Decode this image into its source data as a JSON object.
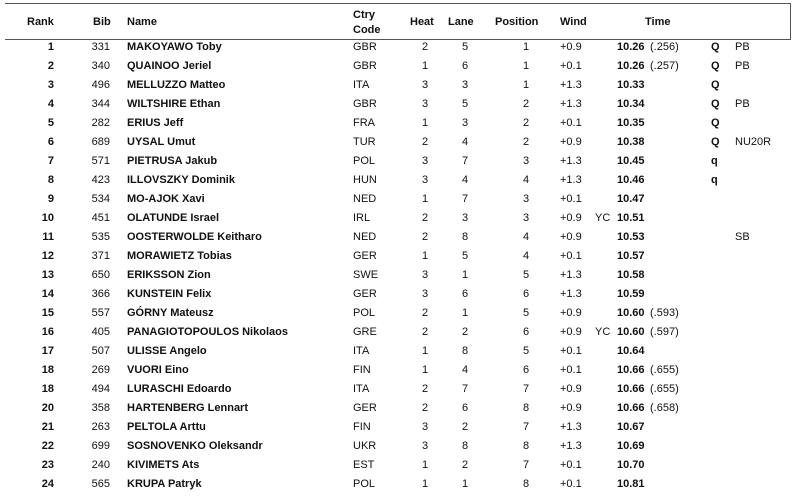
{
  "headers": {
    "rank": "Rank",
    "bib": "Bib",
    "name": "Name",
    "ctry_line1": "Ctry",
    "ctry_line2": "Code",
    "heat": "Heat",
    "lane": "Lane",
    "position": "Position",
    "wind": "Wind",
    "time": "Time"
  },
  "rows": [
    {
      "rank": "1",
      "bib": "331",
      "name": "MAKOYAWO Toby",
      "ctry": "GBR",
      "heat": "2",
      "lane": "5",
      "pos": "1",
      "wind": "+0.9",
      "yc": "",
      "time": "10.26",
      "tb": "(.256)",
      "q": "Q",
      "note": "PB"
    },
    {
      "rank": "2",
      "bib": "340",
      "name": "QUAINOO Jeriel",
      "ctry": "GBR",
      "heat": "1",
      "lane": "6",
      "pos": "1",
      "wind": "+0.1",
      "yc": "",
      "time": "10.26",
      "tb": "(.257)",
      "q": "Q",
      "note": "PB"
    },
    {
      "rank": "3",
      "bib": "496",
      "name": "MELLUZZO Matteo",
      "ctry": "ITA",
      "heat": "3",
      "lane": "3",
      "pos": "1",
      "wind": "+1.3",
      "yc": "",
      "time": "10.33",
      "tb": "",
      "q": "Q",
      "note": ""
    },
    {
      "rank": "4",
      "bib": "344",
      "name": "WILTSHIRE Ethan",
      "ctry": "GBR",
      "heat": "3",
      "lane": "5",
      "pos": "2",
      "wind": "+1.3",
      "yc": "",
      "time": "10.34",
      "tb": "",
      "q": "Q",
      "note": "PB"
    },
    {
      "rank": "5",
      "bib": "282",
      "name": "ERIUS Jeff",
      "ctry": "FRA",
      "heat": "1",
      "lane": "3",
      "pos": "2",
      "wind": "+0.1",
      "yc": "",
      "time": "10.35",
      "tb": "",
      "q": "Q",
      "note": ""
    },
    {
      "rank": "6",
      "bib": "689",
      "name": "UYSAL Umut",
      "ctry": "TUR",
      "heat": "2",
      "lane": "4",
      "pos": "2",
      "wind": "+0.9",
      "yc": "",
      "time": "10.38",
      "tb": "",
      "q": "Q",
      "note": "NU20R"
    },
    {
      "rank": "7",
      "bib": "571",
      "name": "PIETRUSA Jakub",
      "ctry": "POL",
      "heat": "3",
      "lane": "7",
      "pos": "3",
      "wind": "+1.3",
      "yc": "",
      "time": "10.45",
      "tb": "",
      "q": "q",
      "note": ""
    },
    {
      "rank": "8",
      "bib": "423",
      "name": "ILLOVSZKY Dominik",
      "ctry": "HUN",
      "heat": "3",
      "lane": "4",
      "pos": "4",
      "wind": "+1.3",
      "yc": "",
      "time": "10.46",
      "tb": "",
      "q": "q",
      "note": ""
    },
    {
      "rank": "9",
      "bib": "534",
      "name": "MO-AJOK Xavi",
      "ctry": "NED",
      "heat": "1",
      "lane": "7",
      "pos": "3",
      "wind": "+0.1",
      "yc": "",
      "time": "10.47",
      "tb": "",
      "q": "",
      "note": ""
    },
    {
      "rank": "10",
      "bib": "451",
      "name": "OLATUNDE Israel",
      "ctry": "IRL",
      "heat": "2",
      "lane": "3",
      "pos": "3",
      "wind": "+0.9",
      "yc": "YC",
      "time": "10.51",
      "tb": "",
      "q": "",
      "note": ""
    },
    {
      "rank": "11",
      "bib": "535",
      "name": "OOSTERWOLDE Keitharo",
      "ctry": "NED",
      "heat": "2",
      "lane": "8",
      "pos": "4",
      "wind": "+0.9",
      "yc": "",
      "time": "10.53",
      "tb": "",
      "q": "",
      "note": "SB"
    },
    {
      "rank": "12",
      "bib": "371",
      "name": "MORAWIETZ Tobias",
      "ctry": "GER",
      "heat": "1",
      "lane": "5",
      "pos": "4",
      "wind": "+0.1",
      "yc": "",
      "time": "10.57",
      "tb": "",
      "q": "",
      "note": ""
    },
    {
      "rank": "13",
      "bib": "650",
      "name": "ERIKSSON Zion",
      "ctry": "SWE",
      "heat": "3",
      "lane": "1",
      "pos": "5",
      "wind": "+1.3",
      "yc": "",
      "time": "10.58",
      "tb": "",
      "q": "",
      "note": ""
    },
    {
      "rank": "14",
      "bib": "366",
      "name": "KUNSTEIN Felix",
      "ctry": "GER",
      "heat": "3",
      "lane": "6",
      "pos": "6",
      "wind": "+1.3",
      "yc": "",
      "time": "10.59",
      "tb": "",
      "q": "",
      "note": ""
    },
    {
      "rank": "15",
      "bib": "557",
      "name": "GÓRNY Mateusz",
      "ctry": "POL",
      "heat": "2",
      "lane": "1",
      "pos": "5",
      "wind": "+0.9",
      "yc": "",
      "time": "10.60",
      "tb": "(.593)",
      "q": "",
      "note": ""
    },
    {
      "rank": "16",
      "bib": "405",
      "name": "PANAGIOTOPOULOS Nikolaos",
      "ctry": "GRE",
      "heat": "2",
      "lane": "2",
      "pos": "6",
      "wind": "+0.9",
      "yc": "YC",
      "time": "10.60",
      "tb": "(.597)",
      "q": "",
      "note": ""
    },
    {
      "rank": "17",
      "bib": "507",
      "name": "ULISSE Angelo",
      "ctry": "ITA",
      "heat": "1",
      "lane": "8",
      "pos": "5",
      "wind": "+0.1",
      "yc": "",
      "time": "10.64",
      "tb": "",
      "q": "",
      "note": ""
    },
    {
      "rank": "18",
      "bib": "269",
      "name": "VUORI Eino",
      "ctry": "FIN",
      "heat": "1",
      "lane": "4",
      "pos": "6",
      "wind": "+0.1",
      "yc": "",
      "time": "10.66",
      "tb": "(.655)",
      "q": "",
      "note": ""
    },
    {
      "rank": "18",
      "bib": "494",
      "name": "LURASCHI Edoardo",
      "ctry": "ITA",
      "heat": "2",
      "lane": "7",
      "pos": "7",
      "wind": "+0.9",
      "yc": "",
      "time": "10.66",
      "tb": "(.655)",
      "q": "",
      "note": ""
    },
    {
      "rank": "20",
      "bib": "358",
      "name": "HARTENBERG Lennart",
      "ctry": "GER",
      "heat": "2",
      "lane": "6",
      "pos": "8",
      "wind": "+0.9",
      "yc": "",
      "time": "10.66",
      "tb": "(.658)",
      "q": "",
      "note": ""
    },
    {
      "rank": "21",
      "bib": "263",
      "name": "PELTOLA Arttu",
      "ctry": "FIN",
      "heat": "3",
      "lane": "2",
      "pos": "7",
      "wind": "+1.3",
      "yc": "",
      "time": "10.67",
      "tb": "",
      "q": "",
      "note": ""
    },
    {
      "rank": "22",
      "bib": "699",
      "name": "SOSNOVENKO Oleksandr",
      "ctry": "UKR",
      "heat": "3",
      "lane": "8",
      "pos": "8",
      "wind": "+1.3",
      "yc": "",
      "time": "10.69",
      "tb": "",
      "q": "",
      "note": ""
    },
    {
      "rank": "23",
      "bib": "240",
      "name": "KIVIMETS Ats",
      "ctry": "EST",
      "heat": "1",
      "lane": "2",
      "pos": "7",
      "wind": "+0.1",
      "yc": "",
      "time": "10.70",
      "tb": "",
      "q": "",
      "note": ""
    },
    {
      "rank": "24",
      "bib": "565",
      "name": "KRUPA Patryk",
      "ctry": "POL",
      "heat": "1",
      "lane": "1",
      "pos": "8",
      "wind": "+0.1",
      "yc": "",
      "time": "10.81",
      "tb": "",
      "q": "",
      "note": ""
    }
  ]
}
